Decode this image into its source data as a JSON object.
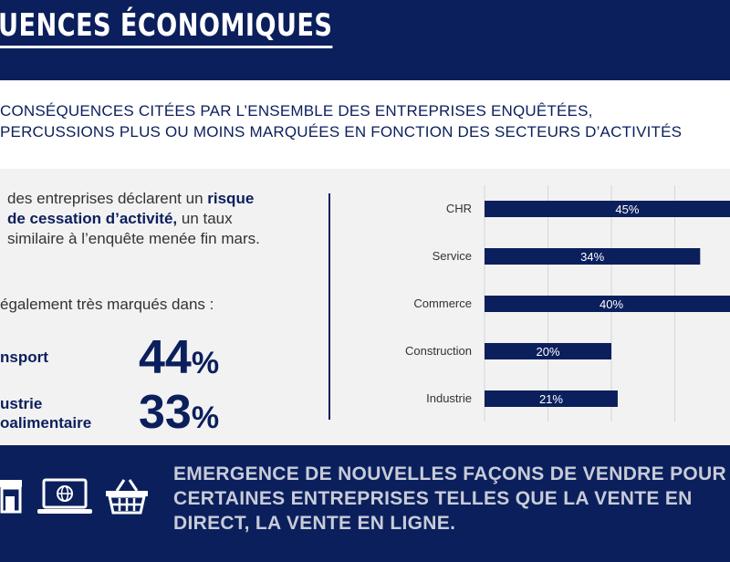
{
  "header": {
    "title": "UENCES ÉCONOMIQUES"
  },
  "subtitle": {
    "line1": "CONSÉQUENCES CITÉES PAR L’ENSEMBLE DES ENTREPRISES ENQUÊTÉES,",
    "line2": "PERCUSSIONS PLUS OU MOINS MARQUÉES EN FONCTION DES SECTEURS D’ACTIVITÉS"
  },
  "intro": {
    "part1": "des entreprises déclarent un",
    "part2": "risque de cessation d’activité,",
    "part3": " un taux similaire à l’enquête menée fin mars."
  },
  "marked": "également très marqués dans :",
  "stats": [
    {
      "label": "nsport",
      "value": "44",
      "unit": "%"
    },
    {
      "label_line1": "ustrie",
      "label_line2": "oalimentaire",
      "value": "33",
      "unit": "%"
    }
  ],
  "chart_data": {
    "type": "bar",
    "orientation": "horizontal",
    "categories": [
      "CHR",
      "Service",
      "Commerce",
      "Construction",
      "Industrie"
    ],
    "values": [
      45,
      34,
      40,
      20,
      21
    ],
    "value_labels": [
      "45%",
      "34%",
      "40%",
      "20%",
      "21%"
    ],
    "bar_color": "#0b1f5c",
    "grid": true
  },
  "bottom": {
    "text": "EMERGENCE DE NOUVELLES  FAÇONS DE VENDRE POUR CERTAINES ENTREPRISES TELLES QUE LA VENTE EN DIRECT, LA VENTE EN LIGNE.",
    "icons": [
      "shop-icon",
      "laptop-globe-icon",
      "shopping-basket-icon"
    ]
  },
  "colors": {
    "navy": "#0b1f5c",
    "panel": "#f2f2f2",
    "bottom_text": "#c8ccd8"
  }
}
